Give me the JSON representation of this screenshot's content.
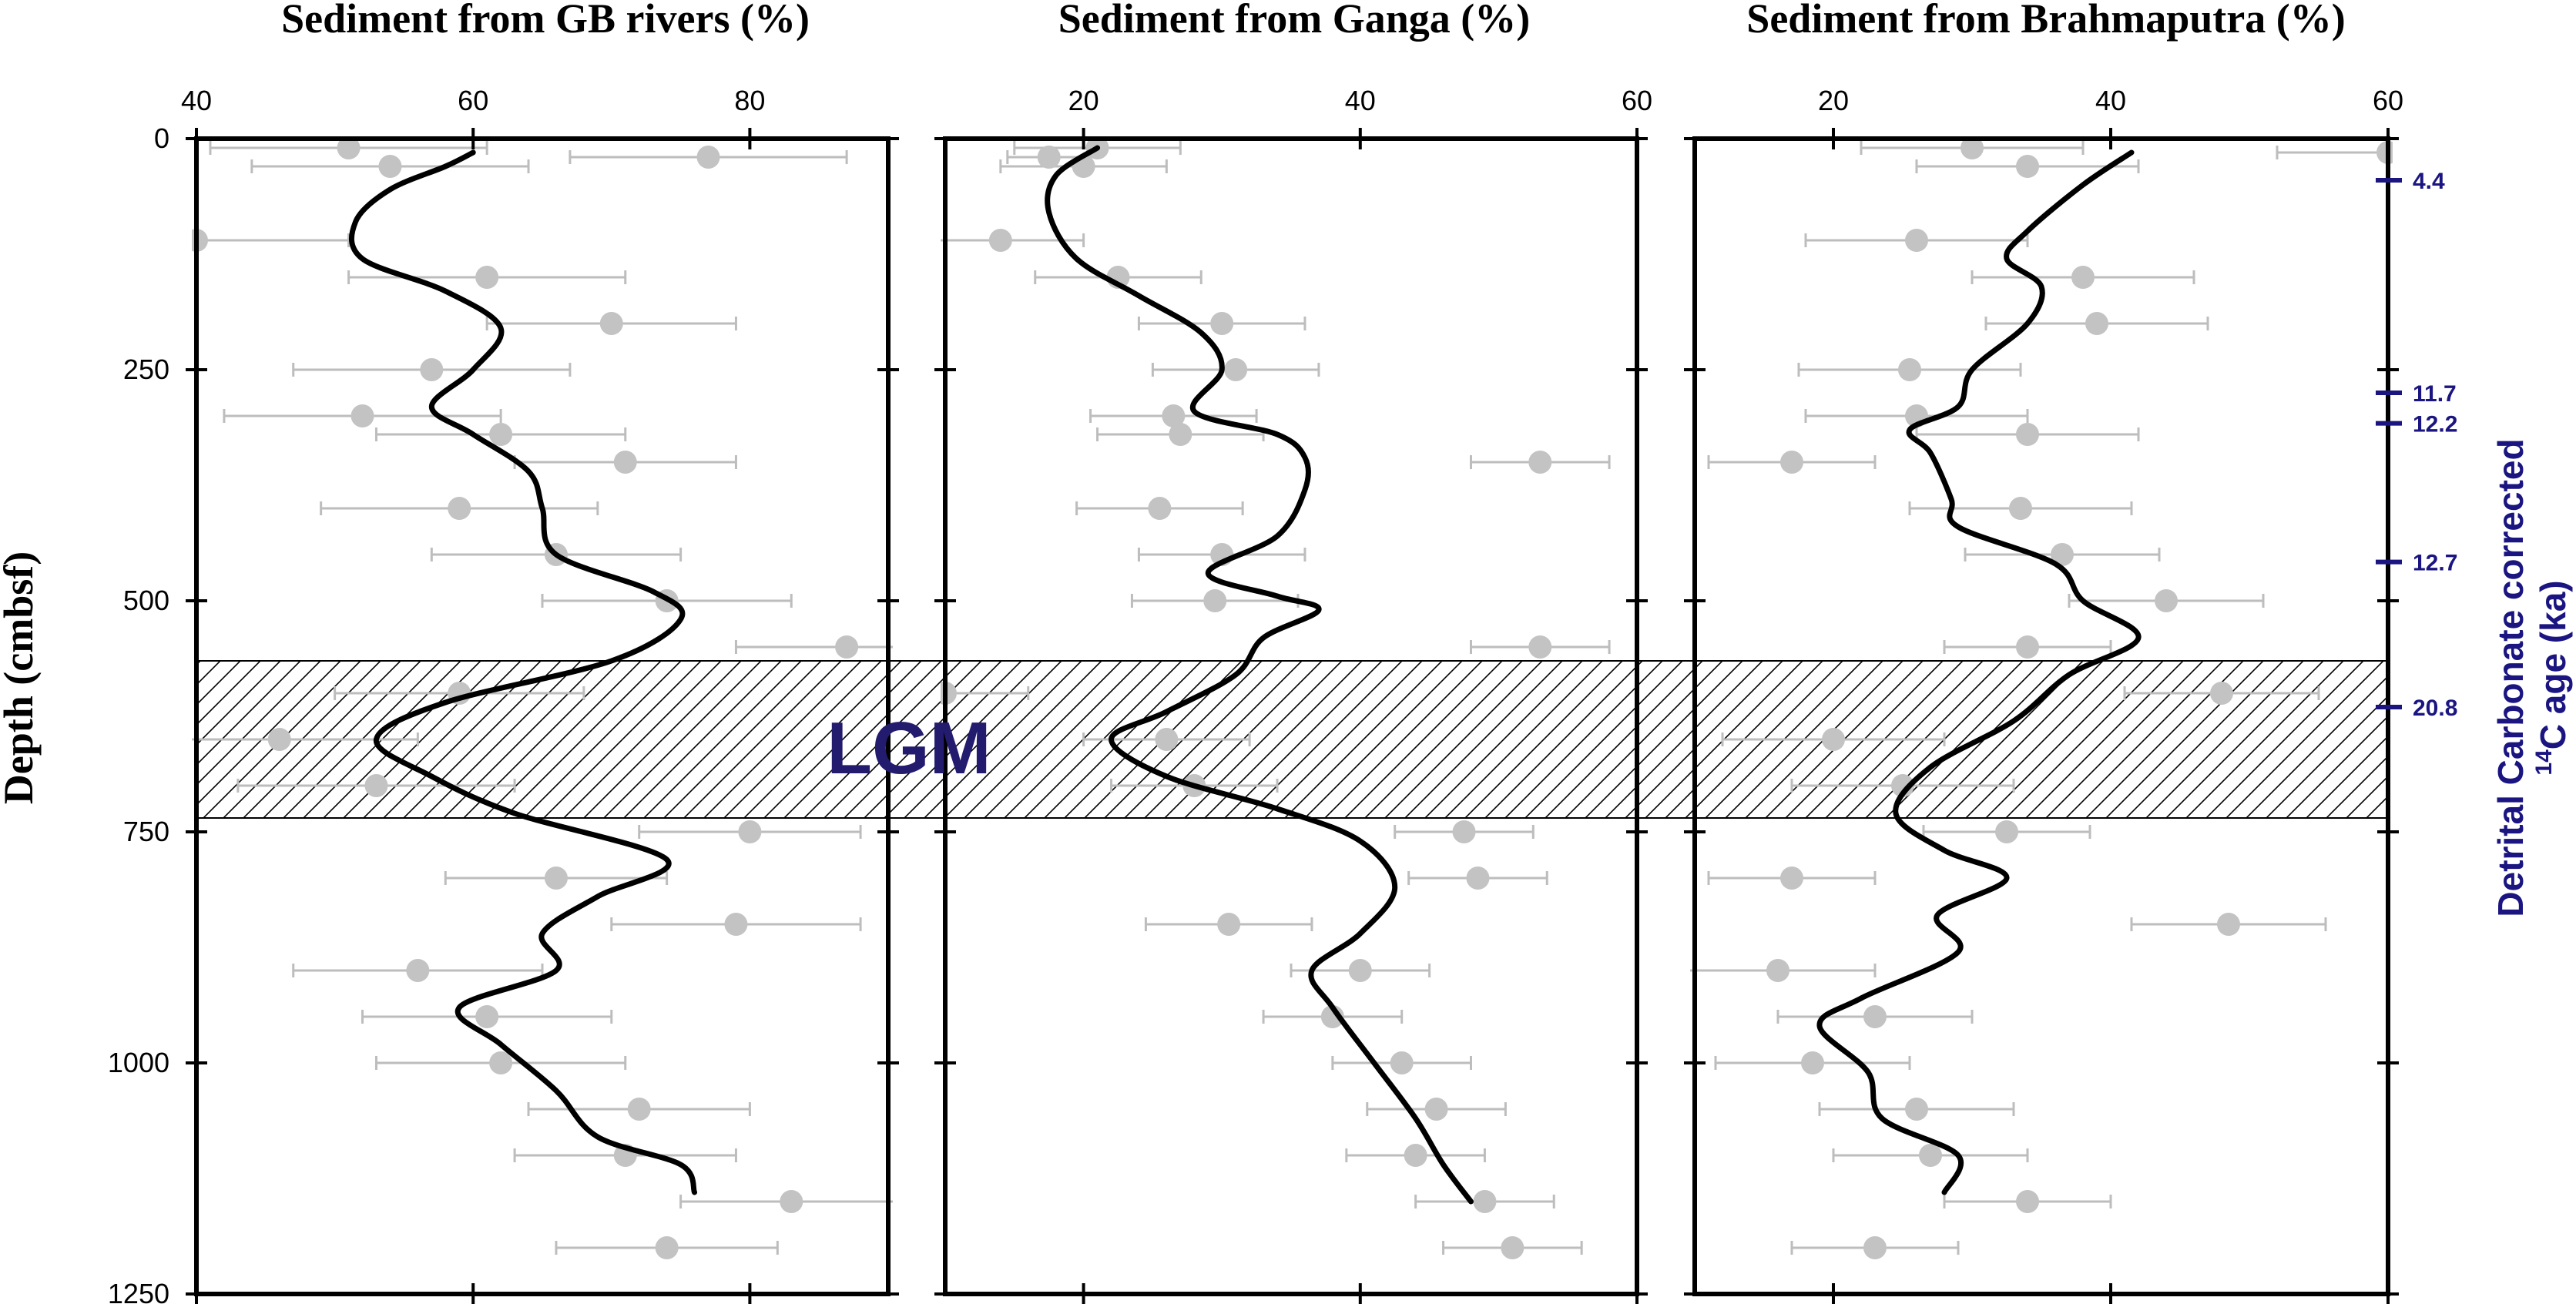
{
  "chart_data": {
    "type": "scatter",
    "y_axis": {
      "label": "Depth (cmbsf)",
      "ticks": [
        "0",
        "250",
        "500",
        "750",
        "1000",
        "1250"
      ],
      "range": [
        0,
        1250
      ],
      "inverted": true
    },
    "lgm_band": {
      "label": "LGM",
      "depth_range": [
        565,
        735
      ],
      "fill": "hatched"
    },
    "panels": [
      {
        "title": "Sediment from GB rivers (%)",
        "xlim": [
          40,
          90
        ],
        "x_ticks": [
          "40",
          "60",
          "80"
        ],
        "x_tick_values": [
          40,
          60,
          80
        ],
        "points": [
          {
            "depth": 10,
            "value": 51,
            "err": 10
          },
          {
            "depth": 20,
            "value": 77,
            "err": 10
          },
          {
            "depth": 30,
            "value": 54,
            "err": 10
          },
          {
            "depth": 110,
            "value": 40,
            "err": 11
          },
          {
            "depth": 150,
            "value": 61,
            "err": 10
          },
          {
            "depth": 200,
            "value": 70,
            "err": 9
          },
          {
            "depth": 250,
            "value": 57,
            "err": 10
          },
          {
            "depth": 300,
            "value": 52,
            "err": 10
          },
          {
            "depth": 320,
            "value": 62,
            "err": 9
          },
          {
            "depth": 350,
            "value": 71,
            "err": 8
          },
          {
            "depth": 400,
            "value": 59,
            "err": 10
          },
          {
            "depth": 450,
            "value": 66,
            "err": 9
          },
          {
            "depth": 500,
            "value": 74,
            "err": 9
          },
          {
            "depth": 550,
            "value": 87,
            "err": 8
          },
          {
            "depth": 600,
            "value": 59,
            "err": 9
          },
          {
            "depth": 650,
            "value": 46,
            "err": 10
          },
          {
            "depth": 700,
            "value": 53,
            "err": 10
          },
          {
            "depth": 750,
            "value": 80,
            "err": 8
          },
          {
            "depth": 800,
            "value": 66,
            "err": 8
          },
          {
            "depth": 850,
            "value": 79,
            "err": 9
          },
          {
            "depth": 900,
            "value": 56,
            "err": 9
          },
          {
            "depth": 950,
            "value": 61,
            "err": 9
          },
          {
            "depth": 1000,
            "value": 62,
            "err": 9
          },
          {
            "depth": 1050,
            "value": 72,
            "err": 8
          },
          {
            "depth": 1100,
            "value": 71,
            "err": 8
          },
          {
            "depth": 1150,
            "value": 83,
            "err": 8
          },
          {
            "depth": 1200,
            "value": 74,
            "err": 8
          }
        ],
        "curve": [
          {
            "depth": 15,
            "value": 60
          },
          {
            "depth": 30,
            "value": 58
          },
          {
            "depth": 55,
            "value": 54
          },
          {
            "depth": 90,
            "value": 51.5
          },
          {
            "depth": 130,
            "value": 52
          },
          {
            "depth": 165,
            "value": 58
          },
          {
            "depth": 205,
            "value": 62
          },
          {
            "depth": 250,
            "value": 60
          },
          {
            "depth": 290,
            "value": 57
          },
          {
            "depth": 320,
            "value": 60
          },
          {
            "depth": 360,
            "value": 64
          },
          {
            "depth": 400,
            "value": 65
          },
          {
            "depth": 450,
            "value": 66
          },
          {
            "depth": 490,
            "value": 73
          },
          {
            "depth": 520,
            "value": 75
          },
          {
            "depth": 565,
            "value": 70
          },
          {
            "depth": 610,
            "value": 58
          },
          {
            "depth": 650,
            "value": 53
          },
          {
            "depth": 690,
            "value": 57
          },
          {
            "depth": 730,
            "value": 63
          },
          {
            "depth": 780,
            "value": 74
          },
          {
            "depth": 820,
            "value": 69
          },
          {
            "depth": 860,
            "value": 65
          },
          {
            "depth": 900,
            "value": 66
          },
          {
            "depth": 940,
            "value": 59
          },
          {
            "depth": 980,
            "value": 62
          },
          {
            "depth": 1030,
            "value": 66
          },
          {
            "depth": 1080,
            "value": 69
          },
          {
            "depth": 1110,
            "value": 75
          },
          {
            "depth": 1140,
            "value": 76
          }
        ]
      },
      {
        "title": "Sediment from Ganga (%)",
        "xlim": [
          10,
          60
        ],
        "x_ticks": [
          "20",
          "40",
          "60"
        ],
        "x_tick_values": [
          20,
          40,
          60
        ],
        "points": [
          {
            "depth": 10,
            "value": 21,
            "err": 6
          },
          {
            "depth": 20,
            "value": 17.5,
            "err": 3
          },
          {
            "depth": 30,
            "value": 20,
            "err": 6
          },
          {
            "depth": 110,
            "value": 14,
            "err": 6
          },
          {
            "depth": 150,
            "value": 22.5,
            "err": 6
          },
          {
            "depth": 200,
            "value": 30,
            "err": 6
          },
          {
            "depth": 250,
            "value": 31,
            "err": 6
          },
          {
            "depth": 300,
            "value": 26.5,
            "err": 6
          },
          {
            "depth": 320,
            "value": 27,
            "err": 6
          },
          {
            "depth": 350,
            "value": 53,
            "err": 5
          },
          {
            "depth": 400,
            "value": 25.5,
            "err": 6
          },
          {
            "depth": 450,
            "value": 30,
            "err": 6
          },
          {
            "depth": 500,
            "value": 29.5,
            "err": 6
          },
          {
            "depth": 550,
            "value": 53,
            "err": 5
          },
          {
            "depth": 600,
            "value": 10,
            "err": 6
          },
          {
            "depth": 650,
            "value": 26,
            "err": 6
          },
          {
            "depth": 700,
            "value": 28,
            "err": 6
          },
          {
            "depth": 750,
            "value": 47.5,
            "err": 5
          },
          {
            "depth": 800,
            "value": 48.5,
            "err": 5
          },
          {
            "depth": 850,
            "value": 30.5,
            "err": 6
          },
          {
            "depth": 900,
            "value": 40,
            "err": 5
          },
          {
            "depth": 950,
            "value": 38,
            "err": 5
          },
          {
            "depth": 1000,
            "value": 43,
            "err": 5
          },
          {
            "depth": 1050,
            "value": 45.5,
            "err": 5
          },
          {
            "depth": 1100,
            "value": 44,
            "err": 5
          },
          {
            "depth": 1150,
            "value": 49,
            "err": 5
          },
          {
            "depth": 1200,
            "value": 51,
            "err": 5
          }
        ],
        "curve": [
          {
            "depth": 10,
            "value": 21
          },
          {
            "depth": 40,
            "value": 18
          },
          {
            "depth": 80,
            "value": 17.5
          },
          {
            "depth": 130,
            "value": 19.5
          },
          {
            "depth": 170,
            "value": 24
          },
          {
            "depth": 210,
            "value": 28.5
          },
          {
            "depth": 250,
            "value": 30
          },
          {
            "depth": 295,
            "value": 28
          },
          {
            "depth": 320,
            "value": 34
          },
          {
            "depth": 345,
            "value": 36
          },
          {
            "depth": 380,
            "value": 36
          },
          {
            "depth": 430,
            "value": 34
          },
          {
            "depth": 470,
            "value": 29
          },
          {
            "depth": 495,
            "value": 34
          },
          {
            "depth": 510,
            "value": 37
          },
          {
            "depth": 540,
            "value": 33
          },
          {
            "depth": 580,
            "value": 31
          },
          {
            "depth": 620,
            "value": 26
          },
          {
            "depth": 650,
            "value": 22
          },
          {
            "depth": 690,
            "value": 26
          },
          {
            "depth": 725,
            "value": 34
          },
          {
            "depth": 760,
            "value": 40
          },
          {
            "depth": 810,
            "value": 42.5
          },
          {
            "depth": 860,
            "value": 40
          },
          {
            "depth": 900,
            "value": 36.5
          },
          {
            "depth": 940,
            "value": 38
          },
          {
            "depth": 1000,
            "value": 41
          },
          {
            "depth": 1060,
            "value": 44
          },
          {
            "depth": 1110,
            "value": 46
          },
          {
            "depth": 1150,
            "value": 48
          }
        ]
      },
      {
        "title": "Sediment from Brahmaputra (%)",
        "xlim": [
          10,
          60
        ],
        "x_ticks": [
          "20",
          "40",
          "60"
        ],
        "x_tick_values": [
          20,
          40,
          60
        ],
        "points": [
          {
            "depth": 10,
            "value": 30,
            "err": 8
          },
          {
            "depth": 15,
            "value": 60,
            "err": 8
          },
          {
            "depth": 30,
            "value": 34,
            "err": 8
          },
          {
            "depth": 110,
            "value": 26,
            "err": 8
          },
          {
            "depth": 150,
            "value": 38,
            "err": 8
          },
          {
            "depth": 200,
            "value": 39,
            "err": 8
          },
          {
            "depth": 250,
            "value": 25.5,
            "err": 8
          },
          {
            "depth": 300,
            "value": 26,
            "err": 8
          },
          {
            "depth": 320,
            "value": 34,
            "err": 8
          },
          {
            "depth": 350,
            "value": 17,
            "err": 6
          },
          {
            "depth": 400,
            "value": 33.5,
            "err": 8
          },
          {
            "depth": 450,
            "value": 36.5,
            "err": 7
          },
          {
            "depth": 500,
            "value": 44,
            "err": 7
          },
          {
            "depth": 550,
            "value": 34,
            "err": 6
          },
          {
            "depth": 600,
            "value": 48,
            "err": 7
          },
          {
            "depth": 650,
            "value": 20,
            "err": 8
          },
          {
            "depth": 700,
            "value": 25,
            "err": 8
          },
          {
            "depth": 750,
            "value": 32.5,
            "err": 6
          },
          {
            "depth": 800,
            "value": 17,
            "err": 6
          },
          {
            "depth": 850,
            "value": 48.5,
            "err": 7
          },
          {
            "depth": 900,
            "value": 16,
            "err": 7
          },
          {
            "depth": 950,
            "value": 23,
            "err": 7
          },
          {
            "depth": 1000,
            "value": 18.5,
            "err": 7
          },
          {
            "depth": 1050,
            "value": 26,
            "err": 7
          },
          {
            "depth": 1100,
            "value": 27,
            "err": 7
          },
          {
            "depth": 1150,
            "value": 34,
            "err": 6
          },
          {
            "depth": 1200,
            "value": 23,
            "err": 6
          }
        ],
        "curve": [
          {
            "depth": 15,
            "value": 41.5
          },
          {
            "depth": 50,
            "value": 38
          },
          {
            "depth": 100,
            "value": 34
          },
          {
            "depth": 130,
            "value": 32.5
          },
          {
            "depth": 160,
            "value": 35
          },
          {
            "depth": 200,
            "value": 34
          },
          {
            "depth": 250,
            "value": 30
          },
          {
            "depth": 290,
            "value": 29
          },
          {
            "depth": 315,
            "value": 25.5
          },
          {
            "depth": 340,
            "value": 27
          },
          {
            "depth": 390,
            "value": 28.5
          },
          {
            "depth": 420,
            "value": 29
          }
        ],
        "curve2": [
          {
            "depth": 420,
            "value": 29
          },
          {
            "depth": 460,
            "value": 36
          },
          {
            "depth": 500,
            "value": 38
          },
          {
            "depth": 540,
            "value": 42
          },
          {
            "depth": 580,
            "value": 37
          },
          {
            "depth": 630,
            "value": 33
          }
        ],
        "curve3": [
          {
            "depth": 630,
            "value": 33
          },
          {
            "depth": 680,
            "value": 27
          },
          {
            "depth": 730,
            "value": 24.5
          },
          {
            "depth": 770,
            "value": 28
          },
          {
            "depth": 800,
            "value": 32.5
          },
          {
            "depth": 840,
            "value": 27.5
          },
          {
            "depth": 880,
            "value": 29
          },
          {
            "depth": 930,
            "value": 22
          },
          {
            "depth": 960,
            "value": 19
          }
        ],
        "curve4": [
          {
            "depth": 960,
            "value": 19
          },
          {
            "depth": 1010,
            "value": 22.5
          },
          {
            "depth": 1060,
            "value": 23.5
          },
          {
            "depth": 1100,
            "value": 29
          },
          {
            "depth": 1140,
            "value": 28
          }
        ]
      }
    ],
    "age_axis": {
      "label_line1": "Detrital Carbonate corrected",
      "label_line2_prefix": "14",
      "label_line2": "C age (ka)",
      "ticks": [
        {
          "depth": 45,
          "label": "4.4"
        },
        {
          "depth": 275,
          "label": "11.7"
        },
        {
          "depth": 308,
          "label": "12.2"
        },
        {
          "depth": 458,
          "label": "12.7"
        },
        {
          "depth": 615,
          "label": "20.8"
        }
      ]
    },
    "colors": {
      "point": "#c3c3c3",
      "errorbar": "#bdbdbd",
      "curve": "#000000",
      "age_axis": "#1a1580",
      "lgm_text": "#231b6e"
    }
  }
}
